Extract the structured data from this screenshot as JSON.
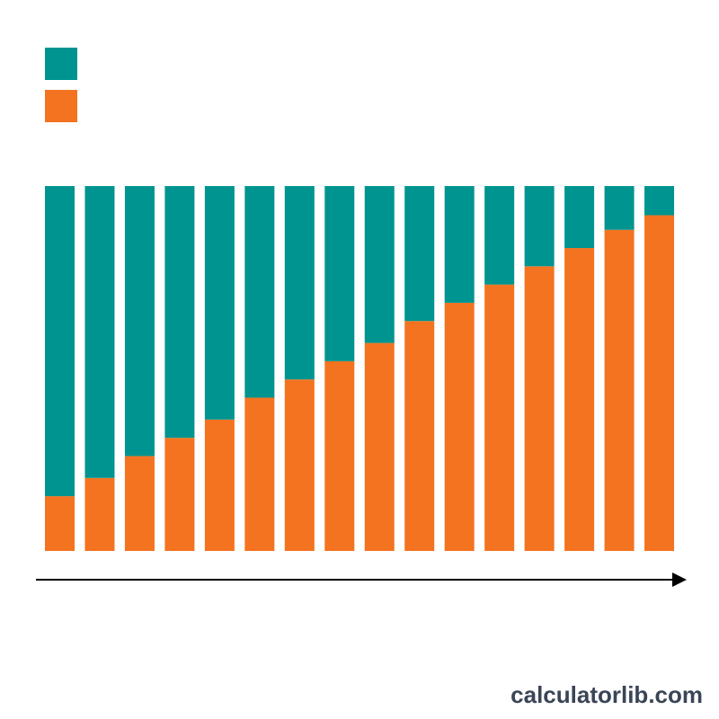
{
  "chart_data": {
    "type": "stacked_bar",
    "categories": [
      null,
      null,
      null,
      null,
      null,
      null,
      null,
      null,
      null,
      null,
      null,
      null,
      null,
      null,
      null,
      null
    ],
    "series": [
      {
        "color": "#f47320",
        "values": [
          15,
          20,
          26,
          31,
          36,
          42,
          47,
          52,
          57,
          63,
          68,
          73,
          78,
          83,
          88,
          92
        ]
      },
      {
        "color": "#009490",
        "values": [
          85,
          80,
          74,
          69,
          64,
          58,
          53,
          48,
          43,
          37,
          32,
          27,
          22,
          17,
          12,
          8
        ]
      }
    ],
    "ylim": [
      0,
      100
    ],
    "legend": "top-left",
    "watermark": "calculatorlib.com"
  }
}
